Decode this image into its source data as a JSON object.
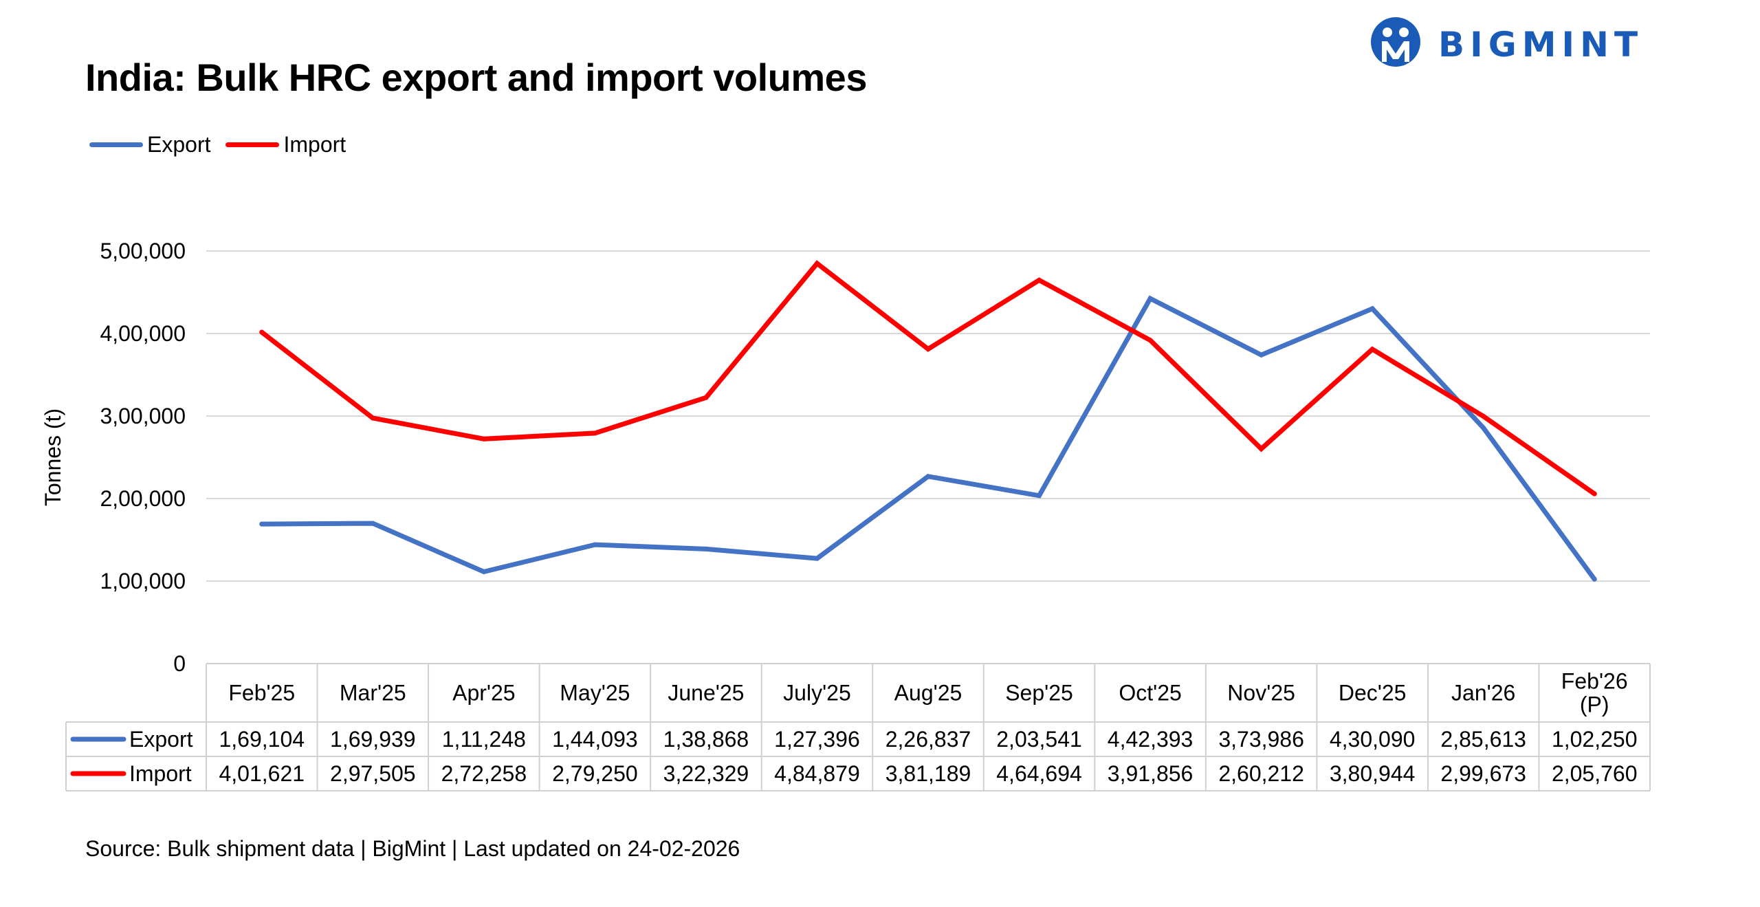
{
  "brand": {
    "name": "BIGMINT",
    "color": "#1a5bb8"
  },
  "source_note": "Source: Bulk shipment data | BigMint | Last updated on 24-02-2026",
  "chart_data": {
    "type": "line",
    "title": "India: Bulk HRC export and import volumes",
    "ylabel": "Tonnes (t)",
    "xlabel": "",
    "ylim": [
      0,
      500000
    ],
    "yticks": [
      0,
      100000,
      200000,
      300000,
      400000,
      500000
    ],
    "ytick_labels": [
      "0",
      "1,00,000",
      "2,00,000",
      "3,00,000",
      "4,00,000",
      "5,00,000"
    ],
    "grid": true,
    "legend": "top-left",
    "categories": [
      "Feb'25",
      "Mar'25",
      "Apr'25",
      "May'25",
      "June'25",
      "July'25",
      "Aug'25",
      "Sep'25",
      "Oct'25",
      "Nov'25",
      "Dec'25",
      "Jan'26",
      "Feb'26\n(P)"
    ],
    "series": [
      {
        "name": "Export",
        "color": "#4472c4",
        "values": [
          169104,
          169939,
          111248,
          144093,
          138868,
          127396,
          226837,
          203541,
          442393,
          373986,
          430090,
          285613,
          102250
        ],
        "value_labels": [
          "1,69,104",
          "1,69,939",
          "1,11,248",
          "1,44,093",
          "1,38,868",
          "1,27,396",
          "2,26,837",
          "2,03,541",
          "4,42,393",
          "3,73,986",
          "4,30,090",
          "2,85,613",
          "1,02,250"
        ]
      },
      {
        "name": "Import",
        "color": "#ff0000",
        "values": [
          401621,
          297505,
          272258,
          279250,
          322329,
          484879,
          381189,
          464694,
          391856,
          260212,
          380944,
          299673,
          205760
        ],
        "value_labels": [
          "4,01,621",
          "2,97,505",
          "2,72,258",
          "2,79,250",
          "3,22,329",
          "4,84,879",
          "3,81,189",
          "4,64,694",
          "3,91,856",
          "2,60,212",
          "3,80,944",
          "2,99,673",
          "2,05,760"
        ]
      }
    ]
  }
}
